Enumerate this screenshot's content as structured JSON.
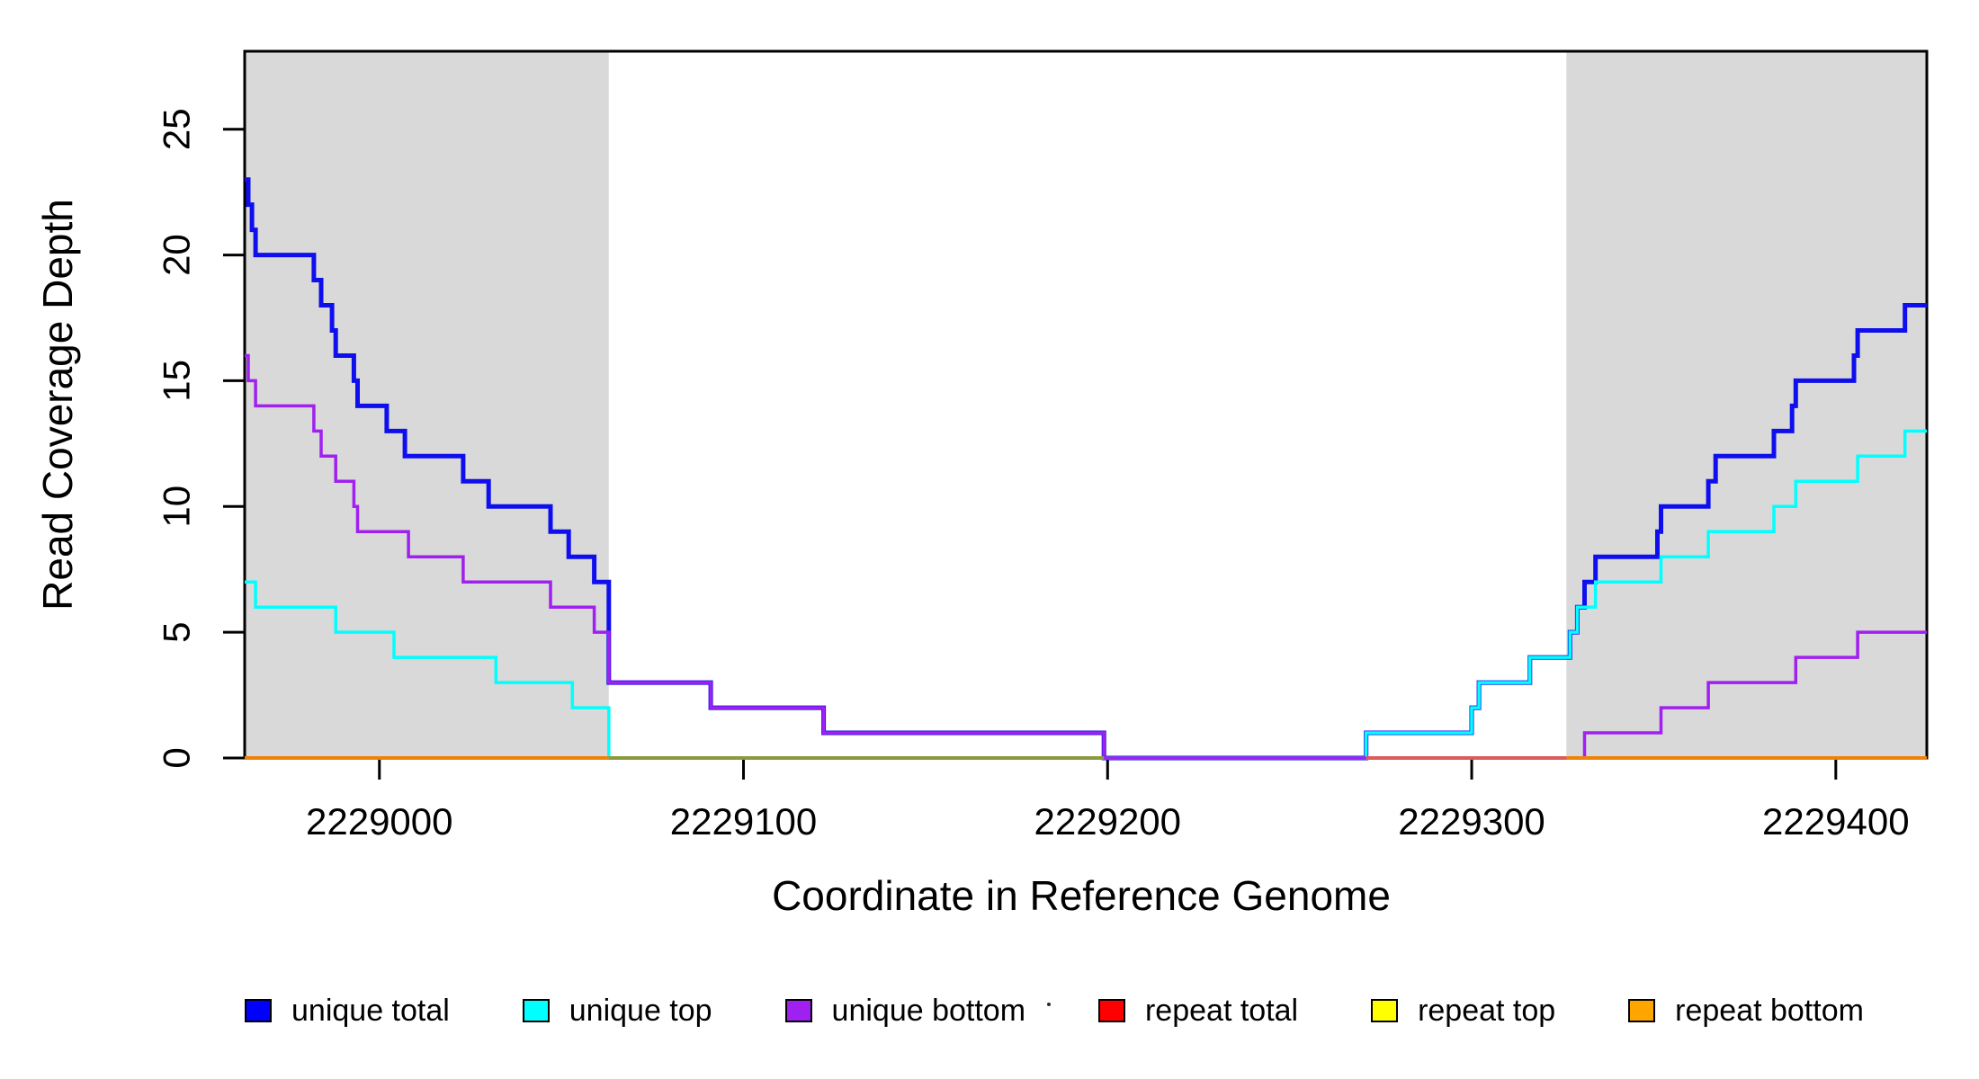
{
  "figure": {
    "y_axis": {
      "label": "Read Coverage Depth",
      "tick_labels": [
        "0",
        "5",
        "10",
        "15",
        "20",
        "25"
      ],
      "tick_values": [
        0,
        5,
        10,
        15,
        20,
        25
      ]
    },
    "x_axis": {
      "label": "Coordinate in Reference Genome",
      "ticks": [
        {
          "value": 2229000,
          "label": "2229000"
        },
        {
          "value": 2229100,
          "label": "2229100"
        },
        {
          "value": 2229200,
          "label": "2229200"
        },
        {
          "value": 2229300,
          "label": "2229300"
        },
        {
          "value": 2229400,
          "label": "2229400"
        }
      ]
    }
  },
  "chart_data": {
    "type": "line",
    "step": true,
    "title": "",
    "xlabel": "Coordinate in Reference Genome",
    "ylabel": "Read Coverage Depth",
    "x_range": [
      2228963,
      2229425
    ],
    "y_range": [
      0,
      28.1
    ],
    "grid": false,
    "legend_position": "bottom",
    "shaded_regions": [
      {
        "name": "left-gray-region",
        "x0": 2228963,
        "x1": 2229063,
        "color": "#d9d9d9"
      },
      {
        "name": "right-gray-region",
        "x0": 2229326,
        "x1": 2229425,
        "color": "#d9d9d9"
      }
    ],
    "series": [
      {
        "name": "unique total",
        "color": "#0f0fee",
        "width": 5,
        "points": [
          [
            2228963,
            23
          ],
          [
            2228964,
            22
          ],
          [
            2228965,
            21
          ],
          [
            2228966,
            20
          ],
          [
            2228982,
            19
          ],
          [
            2228984,
            18
          ],
          [
            2228987,
            17
          ],
          [
            2228988,
            16
          ],
          [
            2228993,
            15
          ],
          [
            2228994,
            14
          ],
          [
            2229002,
            13
          ],
          [
            2229007,
            12
          ],
          [
            2229023,
            11
          ],
          [
            2229030,
            10
          ],
          [
            2229047,
            9
          ],
          [
            2229052,
            8
          ],
          [
            2229059,
            7
          ],
          [
            2229063,
            3
          ],
          [
            2229091,
            2
          ],
          [
            2229122,
            1
          ],
          [
            2229199,
            0
          ],
          [
            2229271,
            1
          ],
          [
            2229300,
            2
          ],
          [
            2229302,
            3
          ],
          [
            2229316,
            4
          ],
          [
            2229327,
            5
          ],
          [
            2229329,
            6
          ],
          [
            2229331,
            7
          ],
          [
            2229334,
            8
          ],
          [
            2229351,
            9
          ],
          [
            2229352,
            10
          ],
          [
            2229365,
            11
          ],
          [
            2229367,
            12
          ],
          [
            2229383,
            13
          ],
          [
            2229388,
            14
          ],
          [
            2229389,
            15
          ],
          [
            2229405,
            16
          ],
          [
            2229406,
            17
          ],
          [
            2229419,
            18
          ],
          [
            2229425,
            18
          ]
        ]
      },
      {
        "name": "unique top",
        "color": "#00ffff",
        "width": 3.5,
        "points": [
          [
            2228963,
            7
          ],
          [
            2228966,
            6
          ],
          [
            2228988,
            5
          ],
          [
            2229004,
            4
          ],
          [
            2229032,
            3
          ],
          [
            2229053,
            2
          ],
          [
            2229063,
            0
          ],
          [
            2229271,
            1
          ],
          [
            2229300,
            2
          ],
          [
            2229302,
            3
          ],
          [
            2229316,
            4
          ],
          [
            2229327,
            5
          ],
          [
            2229329,
            6
          ],
          [
            2229334,
            7
          ],
          [
            2229352,
            8
          ],
          [
            2229365,
            9
          ],
          [
            2229383,
            10
          ],
          [
            2229389,
            11
          ],
          [
            2229406,
            12
          ],
          [
            2229419,
            13
          ],
          [
            2229425,
            13
          ]
        ]
      },
      {
        "name": "unique bottom",
        "color": "#a020f0",
        "width": 3.5,
        "points": [
          [
            2228963,
            16
          ],
          [
            2228964,
            15
          ],
          [
            2228966,
            14
          ],
          [
            2228982,
            13
          ],
          [
            2228984,
            12
          ],
          [
            2228988,
            11
          ],
          [
            2228993,
            10
          ],
          [
            2228994,
            9
          ],
          [
            2229008,
            8
          ],
          [
            2229023,
            7
          ],
          [
            2229047,
            6
          ],
          [
            2229059,
            5
          ],
          [
            2229063,
            3
          ],
          [
            2229091,
            2
          ],
          [
            2229122,
            1
          ],
          [
            2229199,
            0
          ],
          [
            2229331,
            1
          ],
          [
            2229352,
            2
          ],
          [
            2229365,
            3
          ],
          [
            2229389,
            4
          ],
          [
            2229406,
            5
          ],
          [
            2229425,
            5
          ]
        ]
      },
      {
        "name": "repeat total",
        "color": "#ff0000",
        "width": 3.5,
        "points": [
          [
            2228963,
            0
          ],
          [
            2229425,
            0
          ]
        ]
      },
      {
        "name": "repeat top",
        "color": "#ffff00",
        "width": 3.5,
        "points": [
          [
            2228963,
            0
          ],
          [
            2229425,
            0
          ]
        ]
      },
      {
        "name": "repeat bottom",
        "color": "#ff8c00",
        "width": 3.5,
        "points": [
          [
            2228963,
            0
          ],
          [
            2229425,
            0
          ]
        ]
      }
    ],
    "baseline_overlays": [
      {
        "x0": 2228963,
        "x1": 2229063,
        "color": "#f08207"
      },
      {
        "x0": 2229063,
        "x1": 2229199,
        "color": "#8b9a3e"
      },
      {
        "x0": 2229271,
        "x1": 2229326,
        "color": "#db5c5c"
      },
      {
        "x0": 2229326,
        "x1": 2229425,
        "color": "#f08207"
      }
    ],
    "legend": [
      {
        "label": "unique total",
        "color": "#0000ff"
      },
      {
        "label": "unique top",
        "color": "#00ffff"
      },
      {
        "label": "unique bottom",
        "color": "#a020f0"
      },
      {
        "label": "repeat total",
        "color": "#ff0000"
      },
      {
        "label": "repeat top",
        "color": "#ffff00"
      },
      {
        "label": "repeat bottom",
        "color": "#ffa500"
      }
    ]
  }
}
